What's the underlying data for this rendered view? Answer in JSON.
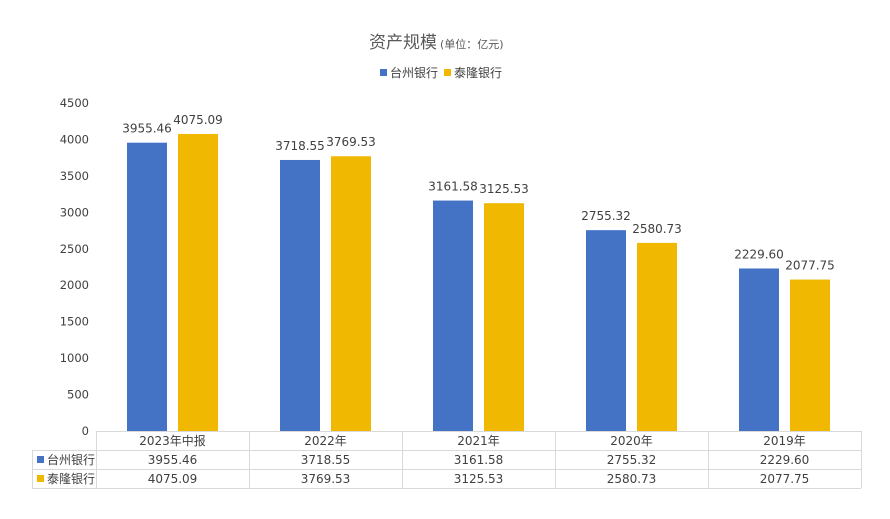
{
  "chart_data": {
    "type": "bar",
    "title": "资产规模",
    "subtitle": "(单位：亿元)",
    "categories": [
      "2023年中报",
      "2022年",
      "2021年",
      "2020年",
      "2019年"
    ],
    "series": [
      {
        "name": "台州银行",
        "color": "#4472C4",
        "values": [
          3955.46,
          3718.55,
          3161.58,
          2755.32,
          2229.6
        ],
        "labels": [
          "3955.46",
          "3718.55",
          "3161.58",
          "2755.32",
          "2229.60"
        ]
      },
      {
        "name": "泰隆银行",
        "color": "#F0B800",
        "values": [
          4075.09,
          3769.53,
          3125.53,
          2580.73,
          2077.75
        ],
        "labels": [
          "4075.09",
          "3769.53",
          "3125.53",
          "2580.73",
          "2077.75"
        ]
      }
    ],
    "ylim": [
      0,
      4500
    ],
    "yticks": [
      0,
      500,
      1000,
      1500,
      2000,
      2500,
      3000,
      3500,
      4000,
      4500
    ],
    "legend_position": "top",
    "grid": false,
    "data_table": true
  }
}
